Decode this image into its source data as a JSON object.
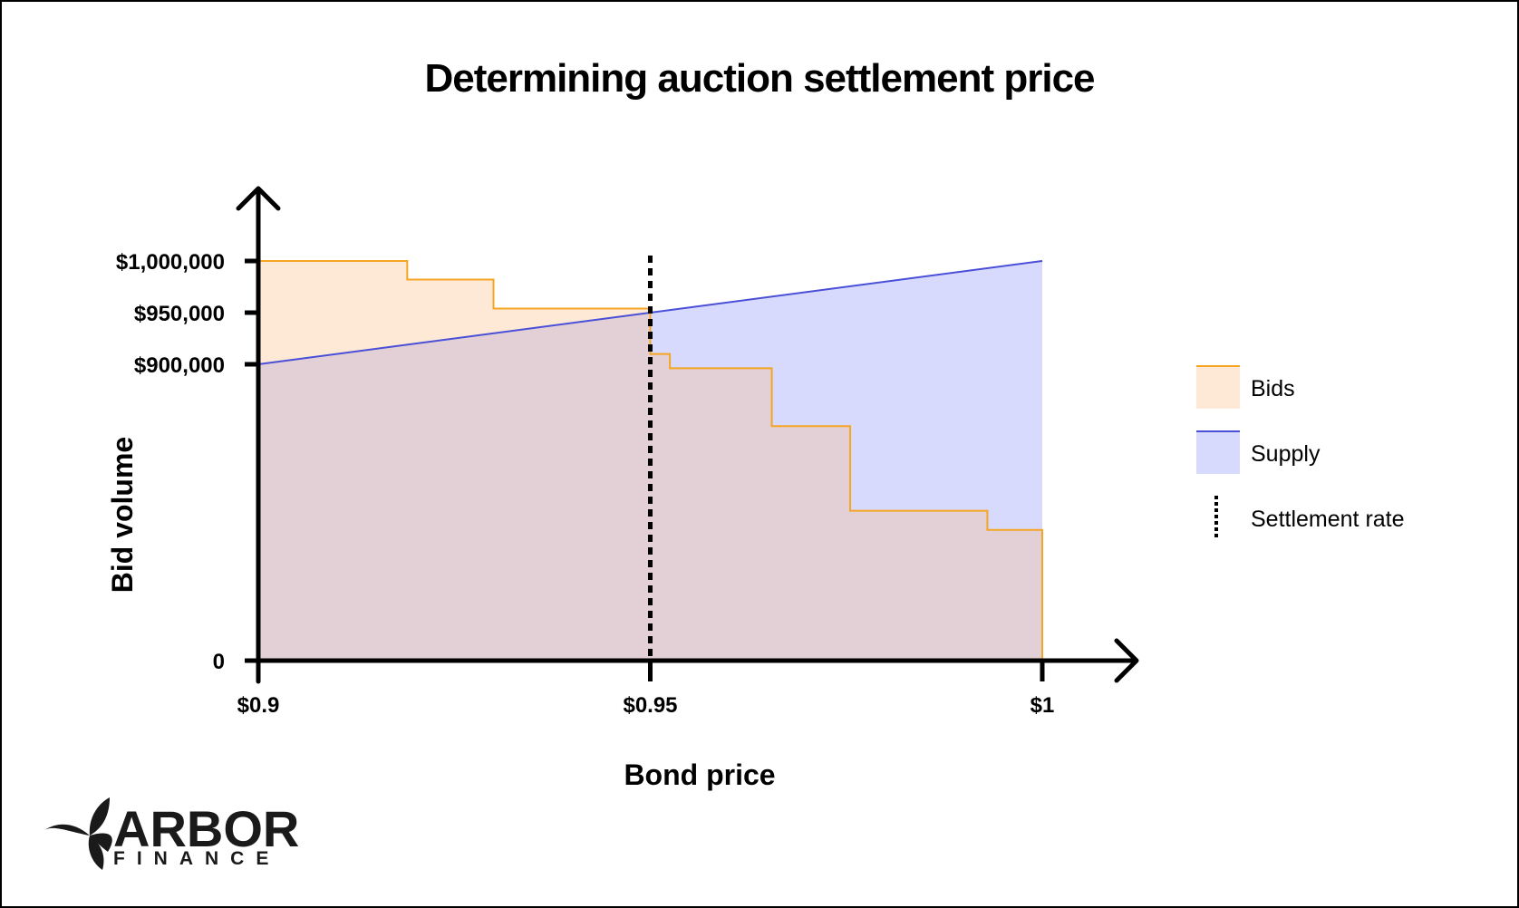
{
  "chart_data": {
    "type": "area",
    "title": "Determining auction settlement price",
    "xlabel": "Bond price",
    "ylabel": "Bid volume",
    "xlim": [
      0.9,
      1.0
    ],
    "x_ticks": [
      {
        "value": 0.9,
        "label": "$0.9"
      },
      {
        "value": 0.95,
        "label": "$0.95"
      },
      {
        "value": 1.0,
        "label": "$1"
      }
    ],
    "y_ticks": [
      {
        "value": 0,
        "label": "0"
      },
      {
        "value": 900000,
        "label": "$900,000"
      },
      {
        "value": 950000,
        "label": "$950,000"
      },
      {
        "value": 1000000,
        "label": "$1,000,000"
      }
    ],
    "series": [
      {
        "name": "Bids",
        "type": "step-area",
        "color": "#f5a524",
        "fill": "#fde9d6",
        "points": [
          [
            0.9,
            1000000
          ],
          [
            0.919,
            1000000
          ],
          [
            0.919,
            982000
          ],
          [
            0.93,
            982000
          ],
          [
            0.93,
            954000
          ],
          [
            0.95,
            954000
          ],
          [
            0.95,
            910000
          ],
          [
            0.9525,
            910000
          ],
          [
            0.9525,
            888000
          ],
          [
            0.9655,
            888000
          ],
          [
            0.9655,
            712000
          ],
          [
            0.9755,
            712000
          ],
          [
            0.9755,
            455000
          ],
          [
            0.993,
            455000
          ],
          [
            0.993,
            397000
          ],
          [
            1.0,
            397000
          ],
          [
            1.0,
            0
          ]
        ]
      },
      {
        "name": "Supply",
        "type": "line-area",
        "color": "#4a4fd8",
        "fill": "#d8dafd",
        "points": [
          [
            0.9,
            900000
          ],
          [
            1.0,
            1000000
          ]
        ]
      }
    ],
    "settlement": {
      "name": "Settlement rate",
      "x": 0.95,
      "style": "dotted",
      "color": "#000000"
    },
    "overlap_fill": "#e2d0d6",
    "legend": {
      "position": "right"
    }
  },
  "brand": {
    "name": "ARBOR",
    "sub": "FINANCE"
  }
}
